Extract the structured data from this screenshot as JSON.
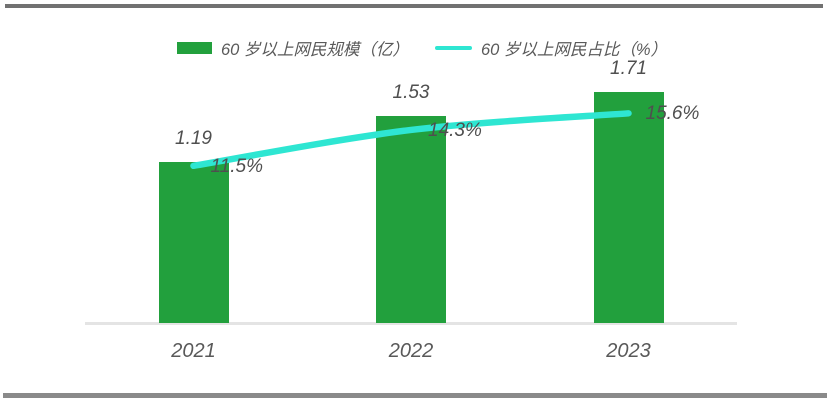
{
  "page": {
    "background_color": "#ffffff",
    "top_border_color": "#717171",
    "bottom_border_color": "#8a8a8a"
  },
  "legend": {
    "bar_series": {
      "label": "60 岁以上网民规模（亿）",
      "color": "#22A03D"
    },
    "line_series": {
      "label": "60 岁以上网民占比（%）",
      "color": "#2EE6D2"
    }
  },
  "chart_data": {
    "type": "bar",
    "subtype": "bar-line-combo",
    "title": "",
    "xlabel": "",
    "ylabel": "",
    "categories": [
      "2021",
      "2022",
      "2023"
    ],
    "series": [
      {
        "name": "60 岁以上网民规模（亿）",
        "type": "bar",
        "color": "#22A03D",
        "values": [
          1.19,
          1.53,
          1.71
        ],
        "data_labels": [
          "1.19",
          "1.53",
          "1.71"
        ]
      },
      {
        "name": "60 岁以上网民占比（%）",
        "type": "line",
        "color": "#2EE6D2",
        "values": [
          11.5,
          14.3,
          15.6
        ],
        "data_labels": [
          "11.5%",
          "14.3%",
          "15.6%"
        ]
      }
    ],
    "legend_position": "top",
    "grid": false,
    "axis_line_color": "#e4e4e4",
    "label_color": "#595959"
  }
}
